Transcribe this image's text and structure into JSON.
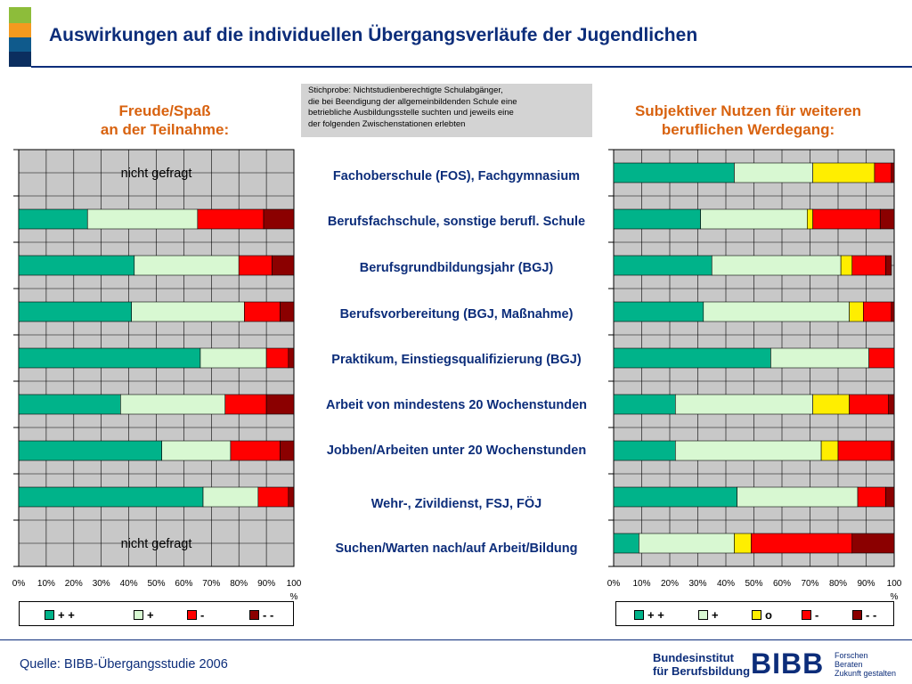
{
  "title": "Auswirkungen auf die individuellen Übergangsverläufe der Jugendlichen",
  "colors": {
    "title": "#0c2d7a",
    "accent_orange": "#d8620f",
    "deco": [
      "#8dbd3a",
      "#f39a1f",
      "#0f5a8c",
      "#0b2e5f"
    ],
    "series": [
      "#00b38a",
      "#d8f8d2",
      "#ffee00",
      "#ff0000",
      "#8b0000"
    ]
  },
  "note": {
    "line1": "Stichprobe: Nichtstudienberechtigte Schulabgänger,",
    "line2": "die bei Beendigung der allgemeinbildenden Schule eine",
    "line3": "betriebliche Ausbildungsstelle suchten und jeweils eine",
    "line4": "der folgenden Zwischenstationen erlebten"
  },
  "categories": [
    "Fachoberschule (FOS), Fachgymnasium",
    "Berufsfachschule, sonstige berufl. Schule",
    "Berufsgrundbildungsjahr (BGJ)",
    "Berufsvorbereitung (BGJ, Maßnahme)",
    "Praktikum, Einstiegsqualifizierung (BGJ)",
    "Arbeit von mindestens 20 Wochenstunden",
    "Jobben/Arbeiten unter 20 Wochenstunden",
    "Wehr-, Zivildienst, FSJ, FÖJ",
    "Suchen/Warten nach/auf Arbeit/Bildung"
  ],
  "chart_data": [
    {
      "type": "bar",
      "orientation": "horizontal",
      "stacked": true,
      "title_line1": "Freude/Spaß",
      "title_line2": "an der Teilnahme:",
      "categories": [
        "Fachoberschule (FOS), Fachgymnasium",
        "Berufsfachschule, sonstige berufl. Schule",
        "Berufsgrundbildungsjahr (BGJ)",
        "Berufsvorbereitung (BGJ, Maßnahme)",
        "Praktikum, Einstiegsqualifizierung (BGJ)",
        "Arbeit von mindestens 20 Wochenstunden",
        "Jobben/Arbeiten unter 20 Wochenstunden",
        "Wehr-, Zivildienst, FSJ, FÖJ",
        "Suchen/Warten nach/auf Arbeit/Bildung"
      ],
      "series": [
        {
          "name": "+ +",
          "values": [
            null,
            25,
            42,
            41,
            66,
            37,
            52,
            67,
            null
          ]
        },
        {
          "name": "+",
          "values": [
            null,
            40,
            38,
            41,
            24,
            38,
            25,
            20,
            null
          ]
        },
        {
          "name": "-",
          "values": [
            null,
            24,
            12,
            13,
            8,
            15,
            18,
            11,
            null
          ]
        },
        {
          "name": "- -",
          "values": [
            null,
            11,
            8,
            5,
            2,
            10,
            5,
            2,
            null
          ]
        }
      ],
      "annotations": [
        {
          "category_index": 0,
          "text": "nicht gefragt"
        },
        {
          "category_index": 8,
          "text": "nicht gefragt"
        }
      ],
      "xlim": [
        0,
        100
      ],
      "x_ticks": [
        "0%",
        "10%",
        "20%",
        "30%",
        "40%",
        "50%",
        "60%",
        "70%",
        "80%",
        "90%",
        "100"
      ],
      "x_unit": "%",
      "grid": true,
      "legend": "bottom"
    },
    {
      "type": "bar",
      "orientation": "horizontal",
      "stacked": true,
      "title_line1": "Subjektiver Nutzen für weiteren",
      "title_line2": "beruflichen Werdegang:",
      "categories": [
        "Fachoberschule (FOS), Fachgymnasium",
        "Berufsfachschule, sonstige berufl. Schule",
        "Berufsgrundbildungsjahr (BGJ)",
        "Berufsvorbereitung (BGJ, Maßnahme)",
        "Praktikum, Einstiegsqualifizierung (BGJ)",
        "Arbeit von mindestens 20 Wochenstunden",
        "Jobben/Arbeiten unter 20 Wochenstunden",
        "Wehr-, Zivildienst, FSJ, FÖJ",
        "Suchen/Warten nach/auf Arbeit/Bildung"
      ],
      "series": [
        {
          "name": "+ +",
          "values": [
            43,
            31,
            35,
            32,
            56,
            22,
            22,
            44,
            9
          ]
        },
        {
          "name": "+",
          "values": [
            28,
            38,
            46,
            52,
            35,
            49,
            52,
            43,
            34
          ]
        },
        {
          "name": "o",
          "values": [
            22,
            2,
            4,
            5,
            0,
            13,
            6,
            0,
            6
          ]
        },
        {
          "name": "-",
          "values": [
            6,
            24,
            12,
            10,
            9,
            14,
            19,
            10,
            36
          ]
        },
        {
          "name": "- -",
          "values": [
            1,
            5,
            2,
            1,
            0,
            2,
            1,
            3,
            15
          ]
        }
      ],
      "xlim": [
        0,
        100
      ],
      "x_ticks": [
        "0%",
        "10%",
        "20%",
        "30%",
        "40%",
        "50%",
        "60%",
        "70%",
        "80%",
        "90%",
        "100"
      ],
      "x_unit": "%",
      "grid": true,
      "legend": "bottom"
    }
  ],
  "footer": {
    "source": "Quelle: BIBB-Übergangsstudie 2006",
    "logo_line1": "Bundesinstitut",
    "logo_line2": "für Berufsbildung",
    "logo_mark": "BIBB",
    "logo_tag1": "Forschen",
    "logo_tag2": "Beraten",
    "logo_tag3": "Zukunft gestalten"
  }
}
